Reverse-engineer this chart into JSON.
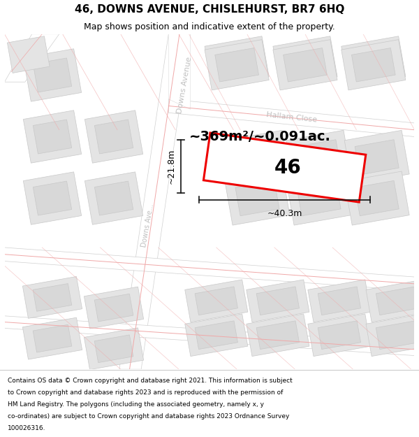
{
  "title": "46, DOWNS AVENUE, CHISLEHURST, BR7 6HQ",
  "subtitle": "Map shows position and indicative extent of the property.",
  "footer": "Contains OS data © Crown copyright and database right 2021. This information is subject to Crown copyright and database rights 2023 and is reproduced with the permission of HM Land Registry. The polygons (including the associated geometry, namely x, y co-ordinates) are subject to Crown copyright and database rights 2023 Ordnance Survey 100026316.",
  "area_label": "~369m²/~0.091ac.",
  "width_label": "~40.3m",
  "height_label": "~21.8m",
  "plot_number": "46",
  "bg_color": "#f2f2f2",
  "road_color": "#ffffff",
  "road_edge_color": "#d0d0d0",
  "building_fill": "#e4e4e4",
  "building_edge": "#c8c8c8",
  "road_line_color": "#f0a8a8",
  "plot_fill": "#ffffff",
  "plot_edge": "#ee0000",
  "label_gray": "#c0c0c0",
  "dim_color": "#111111",
  "title_fs": 11,
  "subtitle_fs": 9,
  "footer_fs": 6.5,
  "area_fs": 14,
  "plot_num_fs": 20,
  "dim_fs": 9,
  "street_fs": 8
}
